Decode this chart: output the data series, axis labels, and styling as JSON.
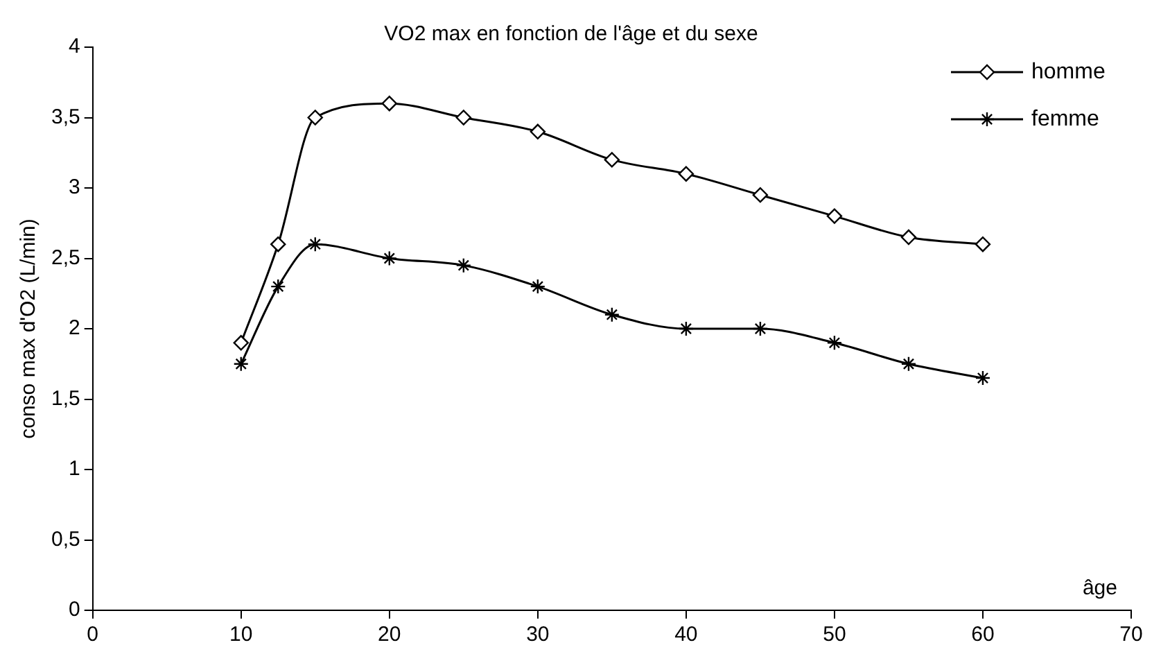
{
  "chart_data": {
    "type": "line",
    "title": "VO2 max en fonction de l'âge et du sexe",
    "xlabel": "âge",
    "ylabel": "conso max d'O2 (L/min)",
    "x": [
      10,
      12.5,
      15,
      20,
      25,
      30,
      35,
      40,
      45,
      50,
      55,
      60
    ],
    "series": [
      {
        "name": "homme",
        "color": "#000000",
        "marker": "diamond",
        "values": [
          1.9,
          2.6,
          3.5,
          3.6,
          3.5,
          3.4,
          3.2,
          3.1,
          2.95,
          2.8,
          2.65,
          2.6
        ]
      },
      {
        "name": "femme",
        "color": "#000000",
        "marker": "cross",
        "values": [
          1.75,
          2.3,
          2.6,
          2.5,
          2.45,
          2.3,
          2.1,
          2.0,
          2.0,
          1.9,
          1.75,
          1.65
        ]
      }
    ],
    "xlim": [
      0,
      70
    ],
    "xticks": [
      0,
      10,
      20,
      30,
      40,
      50,
      60,
      70
    ],
    "ylim": [
      0,
      4
    ],
    "yticks": [
      0,
      {
        "value": 0.5,
        "label": "0,5"
      },
      1,
      {
        "value": 1.5,
        "label": "1,5"
      },
      2,
      {
        "value": 2.5,
        "label": "2,5"
      },
      3,
      {
        "value": 3.5,
        "label": "3,5"
      },
      4
    ],
    "grid": false,
    "legend": "top right",
    "line_style": "solid"
  }
}
